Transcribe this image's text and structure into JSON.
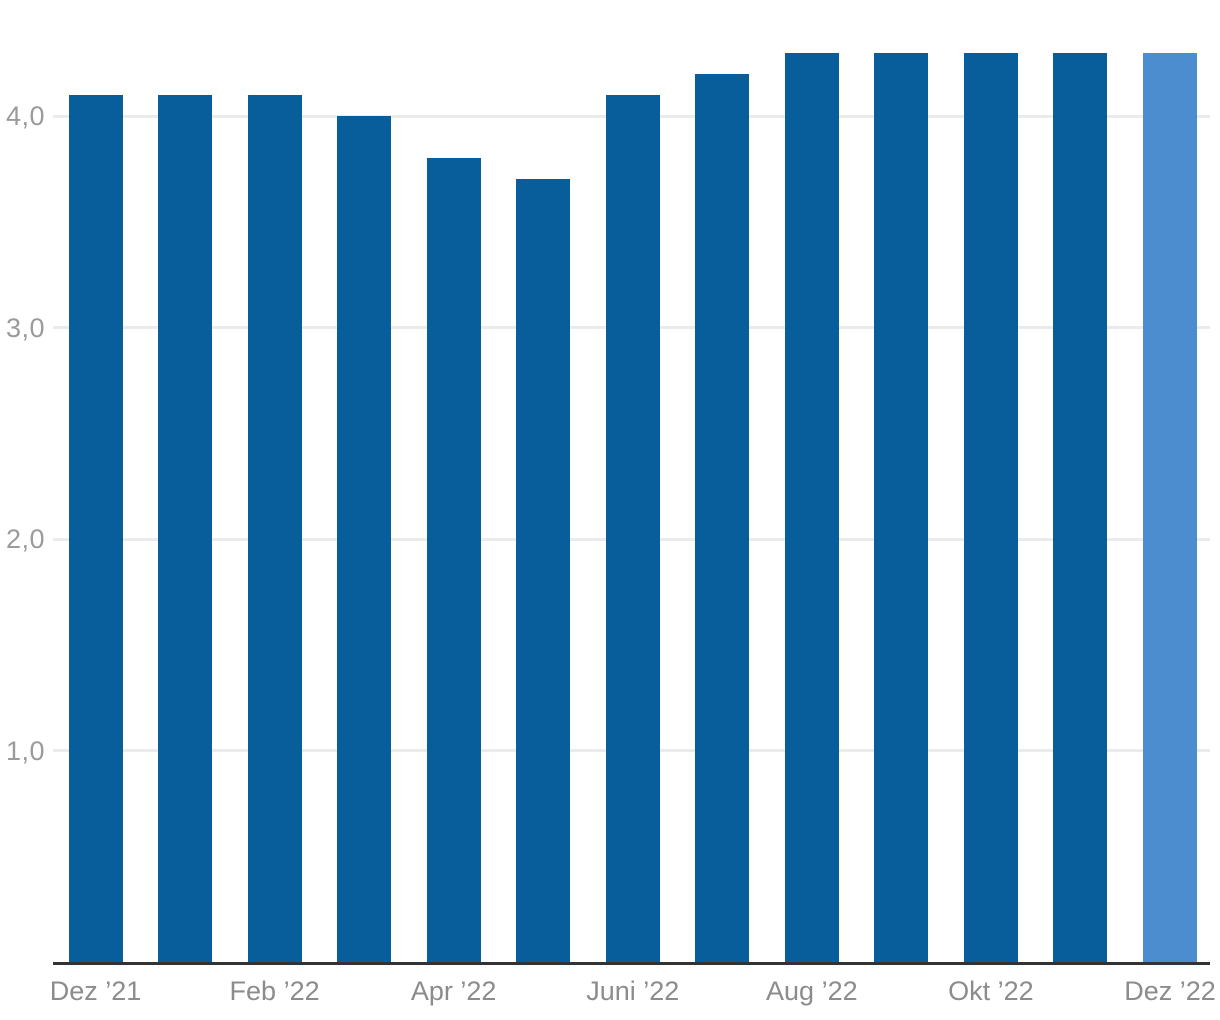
{
  "chart_data": {
    "type": "bar",
    "title": "",
    "xlabel": "",
    "ylabel": "",
    "values": [
      4.1,
      4.1,
      4.1,
      4.0,
      3.8,
      3.7,
      4.1,
      4.2,
      4.3,
      4.3,
      4.3,
      4.3,
      4.3
    ],
    "bar_count": 13,
    "highlight_index": 12,
    "x_tick_labels": [
      "Dez ’21",
      "Feb ’22",
      "Apr ’22",
      "Juni ’22",
      "Aug ’22",
      "Okt ’22",
      "Dez ’22"
    ],
    "x_tick_bar_indexes": [
      0,
      2,
      4,
      6,
      8,
      10,
      12
    ],
    "y_ticks": [
      {
        "value": 1,
        "label": "1,0"
      },
      {
        "value": 2,
        "label": "2,0"
      },
      {
        "value": 3,
        "label": "3,0"
      },
      {
        "value": 4,
        "label": "4,0"
      }
    ],
    "ylim": [
      0,
      4.55
    ],
    "grid": "horizontal",
    "legend": "none",
    "colors": {
      "bar": "#075E9A",
      "bar_highlight": "#4B8DCE",
      "gridline": "#EBEBEB",
      "axis_line": "#333333",
      "y_tick_label": "#9B9B9B",
      "x_tick_label": "#8C8C8C",
      "background": "#FFFFFF"
    }
  }
}
